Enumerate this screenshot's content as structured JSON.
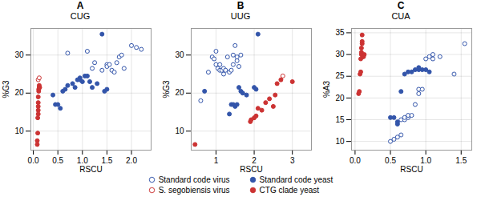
{
  "chart_data": [
    {
      "type": "scatter",
      "title": "A",
      "subtitle": "CUG",
      "xlabel": "RSCU",
      "ylabel": "%G3",
      "xlim": [
        -0.05,
        2.4
      ],
      "ylim": [
        5,
        37
      ],
      "xticks": [
        {
          "value": 0.0,
          "label": "0.0"
        },
        0.5,
        {
          "value": 1.0,
          "label": "1.0"
        },
        1.5,
        {
          "value": 2.0,
          "label": "2.0"
        }
      ],
      "yticks": [
        10,
        20,
        30
      ],
      "grid": true,
      "legend": "bottom",
      "series": [
        {
          "name": "Standard code virus",
          "color": "#3355aa",
          "marker": "hollow",
          "values": [
            [
              0.7,
              30.5
            ],
            [
              1.1,
              31.0
            ],
            [
              1.2,
              26.5
            ],
            [
              1.25,
              28.0
            ],
            [
              1.4,
              26.0
            ],
            [
              1.5,
              27.5
            ],
            [
              1.5,
              27.0
            ],
            [
              1.55,
              27.5
            ],
            [
              1.6,
              26.0
            ],
            [
              1.65,
              25.5
            ],
            [
              1.7,
              28.0
            ],
            [
              1.75,
              29.5
            ],
            [
              1.8,
              30.0
            ],
            [
              1.85,
              26.5
            ],
            [
              2.0,
              32.5
            ],
            [
              2.1,
              32.0
            ],
            [
              2.2,
              31.5
            ]
          ]
        },
        {
          "name": "Standard code yeast",
          "color": "#3355aa",
          "marker": "filled",
          "values": [
            [
              0.4,
              19.5
            ],
            [
              0.45,
              17.0
            ],
            [
              0.5,
              17.0
            ],
            [
              0.55,
              16.0
            ],
            [
              0.6,
              20.5
            ],
            [
              0.65,
              21.0
            ],
            [
              0.7,
              22.0
            ],
            [
              0.8,
              22.5
            ],
            [
              0.85,
              21.5
            ],
            [
              0.9,
              23.5
            ],
            [
              0.95,
              24.0
            ],
            [
              0.95,
              23.5
            ],
            [
              1.0,
              23.0
            ],
            [
              1.05,
              24.5
            ],
            [
              1.1,
              24.5
            ],
            [
              1.15,
              23.0
            ],
            [
              1.2,
              21.5
            ],
            [
              1.3,
              22.5
            ],
            [
              1.4,
              35.5
            ],
            [
              1.45,
              20.5
            ],
            [
              1.5,
              21.0
            ]
          ]
        },
        {
          "name": "S. segobiensis virus",
          "color": "#cc3333",
          "marker": "hollow",
          "values": [
            [
              0.1,
              23.5
            ],
            [
              0.12,
              24.0
            ]
          ]
        },
        {
          "name": "CTG clade yeast",
          "color": "#cc3333",
          "marker": "filled",
          "values": [
            [
              0.08,
              6.5
            ],
            [
              0.08,
              7.5
            ],
            [
              0.09,
              9.5
            ],
            [
              0.09,
              13.5
            ],
            [
              0.1,
              14.5
            ],
            [
              0.1,
              15.5
            ],
            [
              0.1,
              16.5
            ],
            [
              0.1,
              17.5
            ],
            [
              0.1,
              19.0
            ],
            [
              0.11,
              20.5
            ],
            [
              0.11,
              21.0
            ],
            [
              0.12,
              21.5
            ],
            [
              0.12,
              22.0
            ],
            [
              0.13,
              21.5
            ]
          ]
        }
      ]
    },
    {
      "type": "scatter",
      "title": "B",
      "subtitle": "UUG",
      "xlabel": "RSCU",
      "ylabel": "%G3",
      "xlim": [
        0.35,
        3.5
      ],
      "ylim": [
        5,
        37
      ],
      "xticks": [
        1,
        2,
        3
      ],
      "yticks": [
        10,
        20,
        30
      ],
      "grid": true,
      "legend": "bottom",
      "series": [
        {
          "name": "Standard code virus",
          "color": "#3355aa",
          "marker": "hollow",
          "values": [
            [
              0.6,
              18.0
            ],
            [
              0.8,
              25.5
            ],
            [
              0.9,
              29.5
            ],
            [
              0.95,
              29.0
            ],
            [
              1.0,
              31.0
            ],
            [
              1.0,
              27.5
            ],
            [
              1.05,
              26.5
            ],
            [
              1.1,
              26.0
            ],
            [
              1.1,
              27.5
            ],
            [
              1.15,
              26.0
            ],
            [
              1.2,
              25.0
            ],
            [
              1.2,
              26.5
            ],
            [
              1.25,
              26.0
            ],
            [
              1.3,
              29.5
            ],
            [
              1.35,
              25.5
            ],
            [
              1.4,
              26.0
            ],
            [
              1.45,
              27.5
            ],
            [
              1.45,
              30.0
            ],
            [
              1.5,
              32.5
            ],
            [
              1.55,
              29.5
            ],
            [
              1.55,
              28.5
            ],
            [
              1.6,
              27.0
            ],
            [
              1.65,
              30.0
            ]
          ]
        },
        {
          "name": "Standard code yeast",
          "color": "#3355aa",
          "marker": "filled",
          "values": [
            [
              0.7,
              20.5
            ],
            [
              1.35,
              14.5
            ],
            [
              1.4,
              17.0
            ],
            [
              1.45,
              17.0
            ],
            [
              1.5,
              16.5
            ],
            [
              1.55,
              17.0
            ],
            [
              1.6,
              21.5
            ],
            [
              1.65,
              20.5
            ],
            [
              1.7,
              20.0
            ],
            [
              1.8,
              19.5
            ],
            [
              2.0,
              21.5
            ],
            [
              2.05,
              21.0
            ],
            [
              2.1,
              35.5
            ]
          ]
        },
        {
          "name": "S. segobiensis virus",
          "color": "#cc3333",
          "marker": "hollow",
          "values": [
            [
              2.75,
              24.5
            ]
          ]
        },
        {
          "name": "CTG clade yeast",
          "color": "#cc3333",
          "marker": "filled",
          "values": [
            [
              0.45,
              6.5
            ],
            [
              1.9,
              12.5
            ],
            [
              1.92,
              13.0
            ],
            [
              2.0,
              13.5
            ],
            [
              2.05,
              14.0
            ],
            [
              2.1,
              16.0
            ],
            [
              2.2,
              15.5
            ],
            [
              2.3,
              17.5
            ],
            [
              2.4,
              18.5
            ],
            [
              2.5,
              16.5
            ],
            [
              2.55,
              19.5
            ],
            [
              2.6,
              22.5
            ],
            [
              2.7,
              23.5
            ],
            [
              3.0,
              23.0
            ]
          ]
        }
      ]
    },
    {
      "type": "scatter",
      "title": "C",
      "subtitle": "CUA",
      "xlabel": "RSCU",
      "ylabel": "%A3",
      "xlim": [
        -0.05,
        1.65
      ],
      "ylim": [
        8,
        36
      ],
      "xticks": [
        {
          "value": 0.0,
          "label": "0.0"
        },
        0.5,
        {
          "value": 1.0,
          "label": "1.0"
        },
        1.5
      ],
      "yticks": [
        10,
        15,
        20,
        25,
        30,
        35
      ],
      "grid": true,
      "legend": "bottom",
      "series": [
        {
          "name": "Standard code virus",
          "color": "#3355aa",
          "marker": "hollow",
          "values": [
            [
              0.5,
              10.0
            ],
            [
              0.55,
              10.5
            ],
            [
              0.6,
              11.0
            ],
            [
              0.65,
              11.5
            ],
            [
              0.65,
              15.0
            ],
            [
              0.7,
              15.0
            ],
            [
              0.7,
              15.5
            ],
            [
              0.75,
              15.5
            ],
            [
              0.75,
              16.0
            ],
            [
              0.8,
              16.0
            ],
            [
              0.85,
              18.5
            ],
            [
              0.9,
              21.0
            ],
            [
              0.9,
              22.0
            ],
            [
              0.95,
              22.0
            ],
            [
              1.0,
              29.0
            ],
            [
              1.05,
              29.5
            ],
            [
              1.1,
              29.0
            ],
            [
              1.1,
              30.0
            ],
            [
              1.2,
              29.5
            ],
            [
              1.4,
              25.5
            ],
            [
              1.55,
              32.5
            ]
          ]
        },
        {
          "name": "Standard code yeast",
          "color": "#3355aa",
          "marker": "filled",
          "values": [
            [
              0.5,
              15.5
            ],
            [
              0.55,
              15.5
            ],
            [
              0.6,
              14.0
            ],
            [
              0.6,
              14.5
            ],
            [
              0.65,
              21.5
            ],
            [
              0.7,
              25.5
            ],
            [
              0.75,
              26.0
            ],
            [
              0.8,
              26.0
            ],
            [
              0.85,
              26.5
            ],
            [
              0.9,
              26.5
            ],
            [
              0.9,
              27.0
            ],
            [
              0.95,
              26.5
            ],
            [
              1.0,
              26.5
            ],
            [
              1.05,
              26.0
            ]
          ]
        },
        {
          "name": "S. segobiensis virus",
          "color": "#cc3333",
          "marker": "hollow",
          "values": []
        },
        {
          "name": "CTG clade yeast",
          "color": "#cc3333",
          "marker": "filled",
          "values": [
            [
              0.05,
              21.0
            ],
            [
              0.06,
              21.5
            ],
            [
              0.07,
              25.5
            ],
            [
              0.08,
              26.0
            ],
            [
              0.08,
              29.0
            ],
            [
              0.09,
              30.0
            ],
            [
              0.09,
              30.5
            ],
            [
              0.09,
              31.5
            ],
            [
              0.1,
              32.5
            ],
            [
              0.1,
              33.0
            ],
            [
              0.1,
              34.5
            ],
            [
              0.11,
              29.5
            ],
            [
              0.12,
              29.5
            ],
            [
              0.13,
              30.0
            ]
          ]
        }
      ]
    }
  ]
}
